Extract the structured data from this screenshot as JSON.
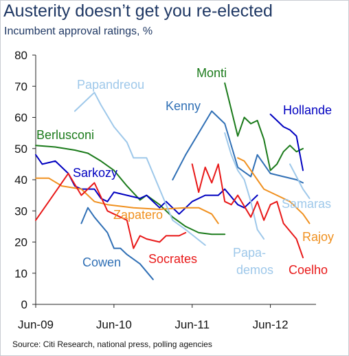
{
  "title": "Austerity doesn’t get you re-elected",
  "subtitle": "Incumbent approval ratings, %",
  "source": "Source: Citi Research, national press, polling agencies",
  "chart_data": {
    "type": "line",
    "ylim": [
      0,
      80
    ],
    "yticks": [
      0,
      10,
      20,
      30,
      40,
      50,
      60,
      70,
      80
    ],
    "xlim": [
      "2009-06",
      "2013-01"
    ],
    "xticks": [
      {
        "date": "2009-06",
        "label": "Jun-09"
      },
      {
        "date": "2010-06",
        "label": "Jun-10"
      },
      {
        "date": "2011-06",
        "label": "Jun-11"
      },
      {
        "date": "2012-06",
        "label": "Jun-12"
      }
    ],
    "grid": false,
    "legend": "direct labels",
    "series": [
      {
        "name": "Berlusconi",
        "color": "#1a7a1a",
        "points": [
          [
            "2009-06",
            51
          ],
          [
            "2009-09",
            50.5
          ],
          [
            "2009-12",
            49.5
          ],
          [
            "2010-02",
            48.5
          ],
          [
            "2010-04",
            46
          ],
          [
            "2010-06",
            43
          ],
          [
            "2010-08",
            38
          ],
          [
            "2010-10",
            33.5
          ],
          [
            "2010-11",
            35
          ],
          [
            "2011-01",
            32
          ],
          [
            "2011-03",
            28
          ],
          [
            "2011-05",
            25
          ],
          [
            "2011-07",
            23
          ],
          [
            "2011-09",
            22.5
          ],
          [
            "2011-11",
            22.5
          ]
        ]
      },
      {
        "name": "Monti",
        "color": "#1a7a1a",
        "points": [
          [
            "2011-11",
            71
          ],
          [
            "2012-01",
            54
          ],
          [
            "2012-02",
            60
          ],
          [
            "2012-03",
            58
          ],
          [
            "2012-04",
            59
          ],
          [
            "2012-05",
            53
          ],
          [
            "2012-06",
            43
          ],
          [
            "2012-07",
            45
          ],
          [
            "2012-08",
            49
          ],
          [
            "2012-09",
            51
          ],
          [
            "2012-10",
            49
          ],
          [
            "2012-11",
            50
          ]
        ]
      },
      {
        "name": "Kenny",
        "color": "#2f6fb5",
        "points": [
          [
            "2011-03",
            40
          ],
          [
            "2011-05",
            48
          ],
          [
            "2011-07",
            55
          ],
          [
            "2011-09",
            62
          ],
          [
            "2011-11",
            58
          ],
          [
            "2012-01",
            44
          ],
          [
            "2012-03",
            41
          ],
          [
            "2012-04",
            48
          ],
          [
            "2012-06",
            42
          ],
          [
            "2012-08",
            41
          ],
          [
            "2012-10",
            40
          ],
          [
            "2012-11",
            39
          ]
        ]
      },
      {
        "name": "Cowen",
        "color": "#2f6fb5",
        "points": [
          [
            "2010-01",
            26
          ],
          [
            "2010-02",
            31
          ],
          [
            "2010-03",
            28
          ],
          [
            "2010-05",
            23
          ],
          [
            "2010-06",
            18
          ],
          [
            "2010-07",
            18
          ],
          [
            "2010-08",
            16
          ],
          [
            "2010-10",
            13
          ],
          [
            "2010-12",
            8
          ]
        ]
      },
      {
        "name": "Sarkozy",
        "color": "#0000c0",
        "points": [
          [
            "2009-06",
            48
          ],
          [
            "2009-07",
            45
          ],
          [
            "2009-09",
            46
          ],
          [
            "2009-11",
            42
          ],
          [
            "2009-12",
            38
          ],
          [
            "2010-01",
            37
          ],
          [
            "2010-03",
            37
          ],
          [
            "2010-04",
            34
          ],
          [
            "2010-05",
            33
          ],
          [
            "2010-06",
            36
          ],
          [
            "2010-08",
            35
          ],
          [
            "2010-10",
            34
          ],
          [
            "2010-11",
            35
          ],
          [
            "2011-01",
            31
          ],
          [
            "2011-02",
            33
          ],
          [
            "2011-04",
            29
          ],
          [
            "2011-06",
            33
          ],
          [
            "2011-08",
            35
          ],
          [
            "2011-10",
            35
          ],
          [
            "2011-11",
            37
          ],
          [
            "2012-01",
            32
          ],
          [
            "2012-02",
            31
          ],
          [
            "2012-03",
            33
          ],
          [
            "2012-04",
            35
          ]
        ]
      },
      {
        "name": "Hollande",
        "color": "#0000c0",
        "points": [
          [
            "2012-06",
            61
          ],
          [
            "2012-07",
            59
          ],
          [
            "2012-08",
            57
          ],
          [
            "2012-09",
            56
          ],
          [
            "2012-10",
            54
          ],
          [
            "2012-11",
            43
          ]
        ]
      },
      {
        "name": "Zapatero",
        "color": "#f0901e",
        "points": [
          [
            "2009-06",
            40.5
          ],
          [
            "2009-08",
            40.5
          ],
          [
            "2009-10",
            38
          ],
          [
            "2010-01",
            37
          ],
          [
            "2010-03",
            33
          ],
          [
            "2010-05",
            32
          ],
          [
            "2010-09",
            31
          ],
          [
            "2011-01",
            30.5
          ],
          [
            "2011-05",
            31
          ],
          [
            "2011-07",
            31
          ],
          [
            "2011-09",
            29
          ],
          [
            "2011-10",
            26
          ]
        ]
      },
      {
        "name": "Rajoy",
        "color": "#f0901e",
        "points": [
          [
            "2012-01",
            47
          ],
          [
            "2012-02",
            46
          ],
          [
            "2012-03",
            43
          ],
          [
            "2012-04",
            40
          ],
          [
            "2012-05",
            37
          ],
          [
            "2012-07",
            35
          ],
          [
            "2012-09",
            33
          ],
          [
            "2012-11",
            29
          ],
          [
            "2012-12",
            26
          ]
        ]
      },
      {
        "name": "Papandreou",
        "color": "#9ec8ea",
        "points": [
          [
            "2009-12",
            62
          ],
          [
            "2010-02",
            66
          ],
          [
            "2010-03",
            68
          ],
          [
            "2010-04",
            64
          ],
          [
            "2010-06",
            57
          ],
          [
            "2010-08",
            52
          ],
          [
            "2010-09",
            47
          ],
          [
            "2010-11",
            47
          ],
          [
            "2011-01",
            37
          ],
          [
            "2011-03",
            27
          ],
          [
            "2011-05",
            24
          ],
          [
            "2011-08",
            19
          ]
        ]
      },
      {
        "name": "Papa-demos",
        "color": "#9ec8ea",
        "points": [
          [
            "2011-11",
            55
          ],
          [
            "2011-12",
            48
          ],
          [
            "2012-01",
            43
          ],
          [
            "2012-02",
            40
          ],
          [
            "2012-03",
            33
          ],
          [
            "2012-04",
            24
          ],
          [
            "2012-05",
            21
          ]
        ]
      },
      {
        "name": "Samaras",
        "color": "#9ec8ea",
        "points": [
          [
            "2012-09",
            45
          ],
          [
            "2012-10",
            41
          ],
          [
            "2012-11",
            37
          ],
          [
            "2012-12",
            34
          ]
        ]
      },
      {
        "name": "Socrates",
        "color": "#e81818",
        "points": [
          [
            "2009-06",
            27
          ],
          [
            "2009-08",
            33
          ],
          [
            "2009-11",
            42
          ],
          [
            "2010-01",
            35
          ],
          [
            "2010-03",
            39
          ],
          [
            "2010-05",
            30
          ],
          [
            "2010-06",
            29
          ],
          [
            "2010-08",
            27
          ],
          [
            "2010-09",
            18
          ],
          [
            "2010-10",
            22
          ],
          [
            "2010-11",
            21
          ],
          [
            "2011-01",
            20
          ],
          [
            "2011-02",
            22
          ],
          [
            "2011-04",
            22
          ],
          [
            "2011-05",
            23
          ]
        ]
      },
      {
        "name": "Coelho",
        "color": "#e81818",
        "points": [
          [
            "2011-06",
            45
          ],
          [
            "2011-07",
            36
          ],
          [
            "2011-08",
            44
          ],
          [
            "2011-09",
            39
          ],
          [
            "2011-10",
            45
          ],
          [
            "2011-11",
            33
          ],
          [
            "2011-12",
            32
          ],
          [
            "2012-01",
            35
          ],
          [
            "2012-03",
            28
          ],
          [
            "2012-04",
            33
          ],
          [
            "2012-05",
            27
          ],
          [
            "2012-06",
            32
          ],
          [
            "2012-07",
            33
          ],
          [
            "2012-08",
            26
          ],
          [
            "2012-10",
            21
          ],
          [
            "2012-11",
            15
          ]
        ]
      }
    ]
  }
}
